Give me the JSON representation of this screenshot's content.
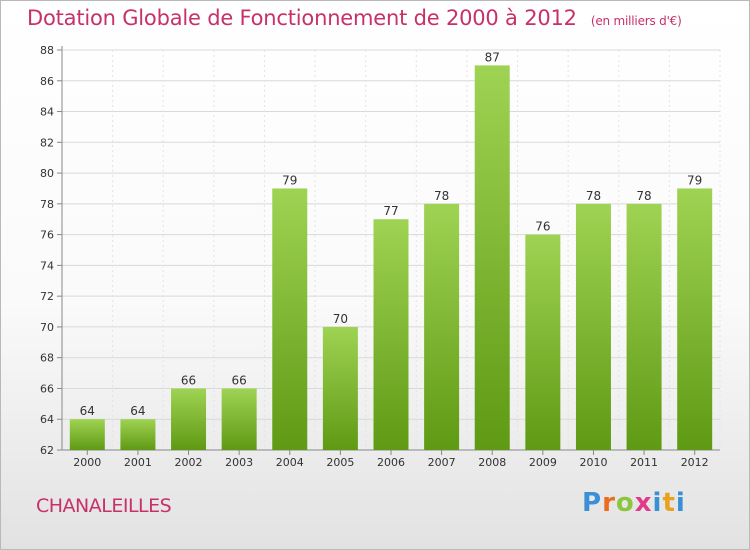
{
  "header": {
    "title": "Dotation Globale de Fonctionnement de 2000 à 2012",
    "subtitle": "(en milliers d'€)"
  },
  "footer": {
    "commune": "CHANALEILLES",
    "logo_text": "Proxiti"
  },
  "colors": {
    "accent": "#c8306a",
    "bar_top": "#9fd353",
    "bar_bottom": "#5f9a14"
  },
  "chart_data": {
    "type": "bar",
    "categories": [
      "2000",
      "2001",
      "2002",
      "2003",
      "2004",
      "2005",
      "2006",
      "2007",
      "2008",
      "2009",
      "2010",
      "2011",
      "2012"
    ],
    "values": [
      64,
      64,
      66,
      66,
      79,
      70,
      77,
      78,
      87,
      76,
      78,
      78,
      79
    ],
    "title": "Dotation Globale de Fonctionnement de 2000 à 2012",
    "subtitle": "(en milliers d'€)",
    "xlabel": "",
    "ylabel": "",
    "ylim": [
      62,
      88
    ],
    "yticks": [
      62,
      64,
      66,
      68,
      70,
      72,
      74,
      76,
      78,
      80,
      82,
      84,
      86,
      88
    ],
    "grid": true,
    "legend": "none"
  }
}
